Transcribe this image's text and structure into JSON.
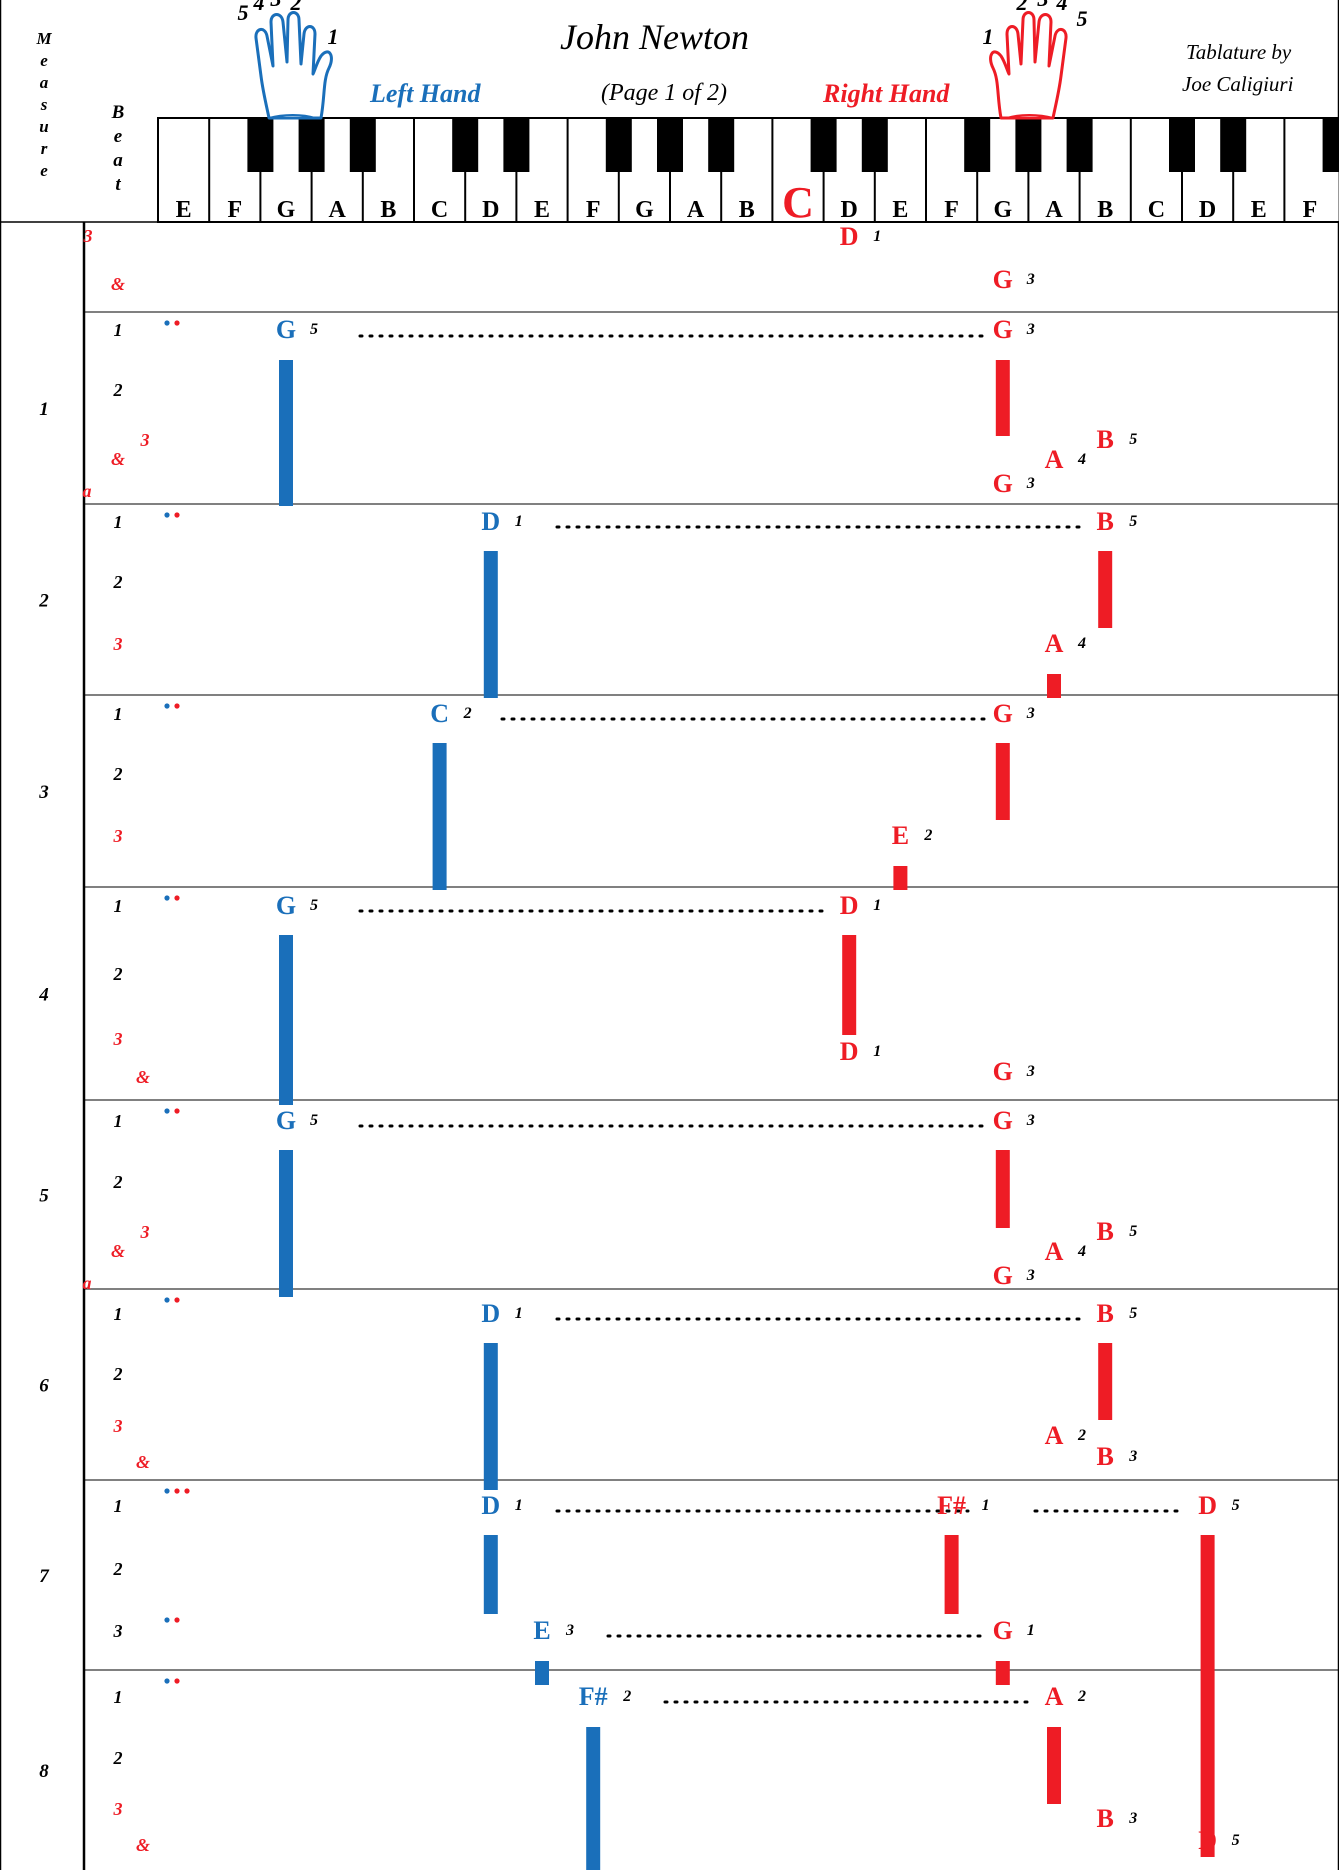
{
  "header": {
    "composer": "John Newton",
    "page_label": "(Page 1 of 2)",
    "left_hand_label": "Left Hand",
    "right_hand_label": "Right Hand",
    "credit_line1": "Tablature by",
    "credit_line2": "Joe Caligiuri",
    "measure_vertical_label": [
      "M",
      "e",
      "a",
      "s",
      "u",
      "r",
      "e"
    ],
    "beat_vertical_label": [
      "B",
      "e",
      "a",
      "t"
    ],
    "left_hand_fingers": [
      "5",
      "4",
      "3",
      "2",
      "1"
    ],
    "right_hand_fingers": [
      "1",
      "2",
      "3",
      "4",
      "5"
    ],
    "middle_c_label": "C"
  },
  "colors": {
    "left": "#1a6fba",
    "right": "#ee1c25",
    "black": "#000000"
  },
  "keyboard": {
    "white_keys": [
      "E",
      "F",
      "G",
      "A",
      "B",
      "C",
      "D",
      "E",
      "F",
      "G",
      "A",
      "B",
      "C",
      "D",
      "E",
      "F",
      "G",
      "A",
      "B",
      "C",
      "D",
      "E",
      "F"
    ],
    "middle_c_index": 12
  },
  "measures": [
    {
      "label": "",
      "beats": [
        {
          "t": "3",
          "c": "r",
          "x": 88,
          "y": 242
        },
        {
          "t": "&",
          "c": "r",
          "x": 118,
          "y": 290
        }
      ],
      "notes": [
        {
          "n": "D",
          "h": "r",
          "k": 13,
          "f": "1",
          "y": 245
        },
        {
          "n": "G",
          "h": "r",
          "k": 16,
          "f": "3",
          "y": 288
        }
      ],
      "bars": [],
      "dots": [],
      "ties": []
    },
    {
      "label": "1",
      "beats": [
        {
          "t": "1",
          "c": "k",
          "x": 118,
          "y": 336
        },
        {
          "t": "2",
          "c": "k",
          "x": 118,
          "y": 396
        },
        {
          "t": "3",
          "c": "r",
          "x": 145,
          "y": 446
        },
        {
          "t": "&",
          "c": "r",
          "x": 118,
          "y": 465
        },
        {
          "t": "a",
          "c": "r",
          "x": 87,
          "y": 497
        }
      ],
      "notes": [
        {
          "n": "G",
          "h": "l",
          "k": 2,
          "f": "5",
          "y": 338
        },
        {
          "n": "G",
          "h": "r",
          "k": 16,
          "f": "3",
          "y": 338
        },
        {
          "n": "B",
          "h": "r",
          "k": 18,
          "f": "5",
          "y": 448
        },
        {
          "n": "A",
          "h": "r",
          "k": 17,
          "f": "4",
          "y": 468
        },
        {
          "n": "G",
          "h": "r",
          "k": 16,
          "f": "3",
          "y": 492
        }
      ],
      "bars": [
        {
          "h": "l",
          "k": 2,
          "y0": 360,
          "y1": 506
        },
        {
          "h": "r",
          "k": 16,
          "y0": 360,
          "y1": 436
        }
      ],
      "dots": [
        "l",
        "r"
      ],
      "ties": [
        {
          "x0": 360,
          "x1": 985,
          "y": 336
        }
      ]
    },
    {
      "label": "2",
      "beats": [
        {
          "t": "1",
          "c": "k",
          "x": 118,
          "y": 528
        },
        {
          "t": "2",
          "c": "k",
          "x": 118,
          "y": 588
        },
        {
          "t": "3",
          "c": "r",
          "x": 118,
          "y": 650
        }
      ],
      "notes": [
        {
          "n": "D",
          "h": "l",
          "k": 6,
          "f": "1",
          "y": 530
        },
        {
          "n": "B",
          "h": "r",
          "k": 18,
          "f": "5",
          "y": 530
        },
        {
          "n": "A",
          "h": "r",
          "k": 17,
          "f": "4",
          "y": 652
        }
      ],
      "bars": [
        {
          "h": "l",
          "k": 6,
          "y0": 551,
          "y1": 698
        },
        {
          "h": "r",
          "k": 18,
          "y0": 551,
          "y1": 628
        },
        {
          "h": "r",
          "k": 17,
          "y0": 674,
          "y1": 698
        }
      ],
      "dots": [
        "l",
        "r"
      ],
      "ties": [
        {
          "x0": 557,
          "x1": 1080,
          "y": 527
        }
      ]
    },
    {
      "label": "3",
      "beats": [
        {
          "t": "1",
          "c": "k",
          "x": 118,
          "y": 720
        },
        {
          "t": "2",
          "c": "k",
          "x": 118,
          "y": 780
        },
        {
          "t": "3",
          "c": "r",
          "x": 118,
          "y": 842
        }
      ],
      "notes": [
        {
          "n": "C",
          "h": "l",
          "k": 5,
          "f": "2",
          "y": 722
        },
        {
          "n": "G",
          "h": "r",
          "k": 16,
          "f": "3",
          "y": 722
        },
        {
          "n": "E",
          "h": "r",
          "k": 14,
          "f": "2",
          "y": 844
        }
      ],
      "bars": [
        {
          "h": "l",
          "k": 5,
          "y0": 743,
          "y1": 890
        },
        {
          "h": "r",
          "k": 16,
          "y0": 743,
          "y1": 820
        },
        {
          "h": "r",
          "k": 14,
          "y0": 866,
          "y1": 890
        }
      ],
      "dots": [
        "l",
        "r"
      ],
      "ties": [
        {
          "x0": 502,
          "x1": 985,
          "y": 719
        }
      ]
    },
    {
      "label": "4",
      "beats": [
        {
          "t": "1",
          "c": "k",
          "x": 118,
          "y": 912
        },
        {
          "t": "2",
          "c": "k",
          "x": 118,
          "y": 980
        },
        {
          "t": "3",
          "c": "r",
          "x": 118,
          "y": 1045
        },
        {
          "t": "&",
          "c": "r",
          "x": 143,
          "y": 1083
        }
      ],
      "notes": [
        {
          "n": "G",
          "h": "l",
          "k": 2,
          "f": "5",
          "y": 914
        },
        {
          "n": "D",
          "h": "r",
          "k": 13,
          "f": "1",
          "y": 914
        },
        {
          "n": "D",
          "h": "r",
          "k": 13,
          "f": "1",
          "y": 1060
        },
        {
          "n": "G",
          "h": "r",
          "k": 16,
          "f": "3",
          "y": 1080
        }
      ],
      "bars": [
        {
          "h": "l",
          "k": 2,
          "y0": 935,
          "y1": 1105
        },
        {
          "h": "r",
          "k": 13,
          "y0": 935,
          "y1": 1035
        }
      ],
      "dots": [
        "l",
        "r"
      ],
      "ties": [
        {
          "x0": 360,
          "x1": 825,
          "y": 911
        }
      ]
    },
    {
      "label": "5",
      "beats": [
        {
          "t": "1",
          "c": "k",
          "x": 118,
          "y": 1127
        },
        {
          "t": "2",
          "c": "k",
          "x": 118,
          "y": 1188
        },
        {
          "t": "3",
          "c": "r",
          "x": 145,
          "y": 1238
        },
        {
          "t": "&",
          "c": "r",
          "x": 118,
          "y": 1257
        },
        {
          "t": "a",
          "c": "r",
          "x": 87,
          "y": 1289
        }
      ],
      "notes": [
        {
          "n": "G",
          "h": "l",
          "k": 2,
          "f": "5",
          "y": 1129
        },
        {
          "n": "G",
          "h": "r",
          "k": 16,
          "f": "3",
          "y": 1129
        },
        {
          "n": "B",
          "h": "r",
          "k": 18,
          "f": "5",
          "y": 1240
        },
        {
          "n": "A",
          "h": "r",
          "k": 17,
          "f": "4",
          "y": 1260
        },
        {
          "n": "G",
          "h": "r",
          "k": 16,
          "f": "3",
          "y": 1284
        }
      ],
      "bars": [
        {
          "h": "l",
          "k": 2,
          "y0": 1150,
          "y1": 1297
        },
        {
          "h": "r",
          "k": 16,
          "y0": 1150,
          "y1": 1228
        }
      ],
      "dots": [
        "l",
        "r"
      ],
      "ties": [
        {
          "x0": 360,
          "x1": 985,
          "y": 1126
        }
      ]
    },
    {
      "label": "6",
      "beats": [
        {
          "t": "1",
          "c": "k",
          "x": 118,
          "y": 1320
        },
        {
          "t": "2",
          "c": "k",
          "x": 118,
          "y": 1380
        },
        {
          "t": "3",
          "c": "r",
          "x": 118,
          "y": 1432
        },
        {
          "t": "&",
          "c": "r",
          "x": 143,
          "y": 1468
        }
      ],
      "notes": [
        {
          "n": "D",
          "h": "l",
          "k": 6,
          "f": "1",
          "y": 1322
        },
        {
          "n": "B",
          "h": "r",
          "k": 18,
          "f": "5",
          "y": 1322
        },
        {
          "n": "A",
          "h": "r",
          "k": 17,
          "f": "2",
          "y": 1444
        },
        {
          "n": "B",
          "h": "r",
          "k": 18,
          "f": "3",
          "y": 1465
        }
      ],
      "bars": [
        {
          "h": "l",
          "k": 6,
          "y0": 1343,
          "y1": 1490
        },
        {
          "h": "r",
          "k": 18,
          "y0": 1343,
          "y1": 1420
        }
      ],
      "dots": [
        "l",
        "r"
      ],
      "ties": [
        {
          "x0": 557,
          "x1": 1080,
          "y": 1319
        }
      ]
    },
    {
      "label": "7",
      "beats": [
        {
          "t": "1",
          "c": "k",
          "x": 118,
          "y": 1512
        },
        {
          "t": "2",
          "c": "k",
          "x": 118,
          "y": 1575
        },
        {
          "t": "3",
          "c": "k",
          "x": 118,
          "y": 1637
        }
      ],
      "notes": [
        {
          "n": "D",
          "h": "l",
          "k": 6,
          "f": "1",
          "y": 1514
        },
        {
          "n": "F#",
          "h": "r",
          "k": 15,
          "f": "1",
          "y": 1514
        },
        {
          "n": "D",
          "h": "r",
          "k": 20,
          "f": "5",
          "y": 1514
        },
        {
          "n": "E",
          "h": "l",
          "k": 7,
          "f": "3",
          "y": 1639
        },
        {
          "n": "G",
          "h": "r",
          "k": 16,
          "f": "1",
          "y": 1639
        }
      ],
      "bars": [
        {
          "h": "l",
          "k": 6,
          "y0": 1535,
          "y1": 1614
        },
        {
          "h": "r",
          "k": 15,
          "y0": 1535,
          "y1": 1614
        },
        {
          "h": "r",
          "k": 20,
          "y0": 1535,
          "y1": 1857
        },
        {
          "h": "l",
          "k": 7,
          "y0": 1661,
          "y1": 1685
        },
        {
          "h": "r",
          "k": 16,
          "y0": 1661,
          "y1": 1685
        }
      ],
      "dots": [
        "l",
        "r",
        "r"
      ],
      "dots2": [
        "l",
        "r"
      ],
      "ties": [
        {
          "x0": 557,
          "x1": 968,
          "y": 1511
        },
        {
          "x0": 1035,
          "x1": 1178,
          "y": 1511
        },
        {
          "x0": 608,
          "x1": 985,
          "y": 1636
        }
      ]
    },
    {
      "label": "8",
      "beats": [
        {
          "t": "1",
          "c": "k",
          "x": 118,
          "y": 1703
        },
        {
          "t": "2",
          "c": "k",
          "x": 118,
          "y": 1764
        },
        {
          "t": "3",
          "c": "r",
          "x": 118,
          "y": 1815
        },
        {
          "t": "&",
          "c": "r",
          "x": 143,
          "y": 1851
        }
      ],
      "notes": [
        {
          "n": "F#",
          "h": "l",
          "k": 8,
          "f": "2",
          "y": 1705
        },
        {
          "n": "A",
          "h": "r",
          "k": 17,
          "f": "2",
          "y": 1705
        },
        {
          "n": "B",
          "h": "r",
          "k": 18,
          "f": "3",
          "y": 1827
        },
        {
          "n": "D",
          "h": "r",
          "k": 20,
          "f": "5",
          "y": 1849
        }
      ],
      "bars": [
        {
          "h": "l",
          "k": 8,
          "y0": 1727,
          "y1": 1870
        },
        {
          "h": "r",
          "k": 17,
          "y0": 1727,
          "y1": 1804
        }
      ],
      "dots": [
        "l",
        "r"
      ],
      "ties": [
        {
          "x0": 665,
          "x1": 1030,
          "y": 1702
        }
      ]
    }
  ]
}
